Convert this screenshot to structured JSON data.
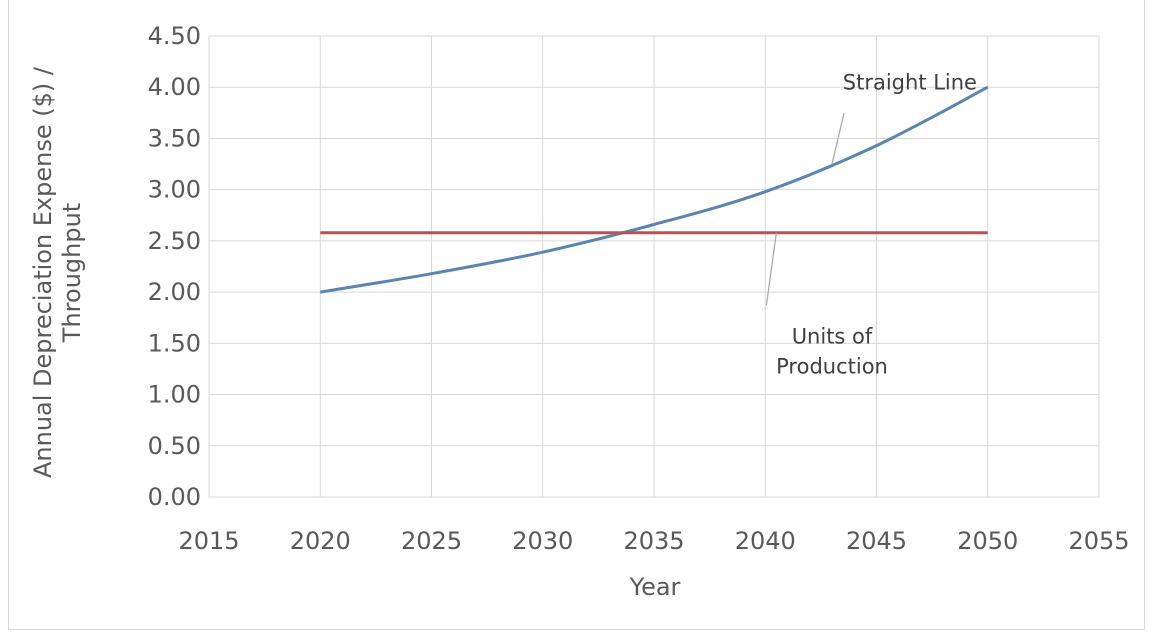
{
  "chart_data": {
    "type": "line",
    "title": "",
    "xlabel": "Year",
    "ylabel": "Annual Depreciation Expense ($) / Throughput",
    "xlim": [
      2015,
      2055
    ],
    "ylim": [
      0,
      4.5
    ],
    "x_ticks": [
      2015,
      2020,
      2025,
      2030,
      2035,
      2040,
      2045,
      2050,
      2055
    ],
    "x_tick_labels": [
      "2015",
      "2020",
      "2025",
      "2030",
      "2035",
      "2040",
      "2045",
      "2050",
      "2055"
    ],
    "y_ticks": [
      0,
      0.5,
      1.0,
      1.5,
      2.0,
      2.5,
      3.0,
      3.5,
      4.0,
      4.5
    ],
    "y_tick_labels": [
      "0.00",
      "0.50",
      "1.00",
      "1.50",
      "2.00",
      "2.50",
      "3.00",
      "3.50",
      "4.00",
      "4.50"
    ],
    "grid": true,
    "legend": "none",
    "series": [
      {
        "name": "Straight Line",
        "color": "#5b84b1",
        "x": [
          2020,
          2025,
          2030,
          2035,
          2040,
          2045,
          2050
        ],
        "y": [
          2.0,
          2.18,
          2.39,
          2.66,
          2.98,
          3.43,
          4.0
        ]
      },
      {
        "name": "Units of Production",
        "color": "#c0504d",
        "x": [
          2020,
          2050
        ],
        "y": [
          2.58,
          2.58
        ]
      }
    ],
    "annotations": [
      {
        "series": 0,
        "lines": [
          "Straight Line"
        ],
        "at_x": 2043,
        "label_x": 2046.5,
        "label_y": 3.98
      },
      {
        "series": 1,
        "lines": [
          "Units of",
          "Production"
        ],
        "at_x": 2040.5,
        "label_x": 2043,
        "label_y": 1.5
      }
    ]
  }
}
